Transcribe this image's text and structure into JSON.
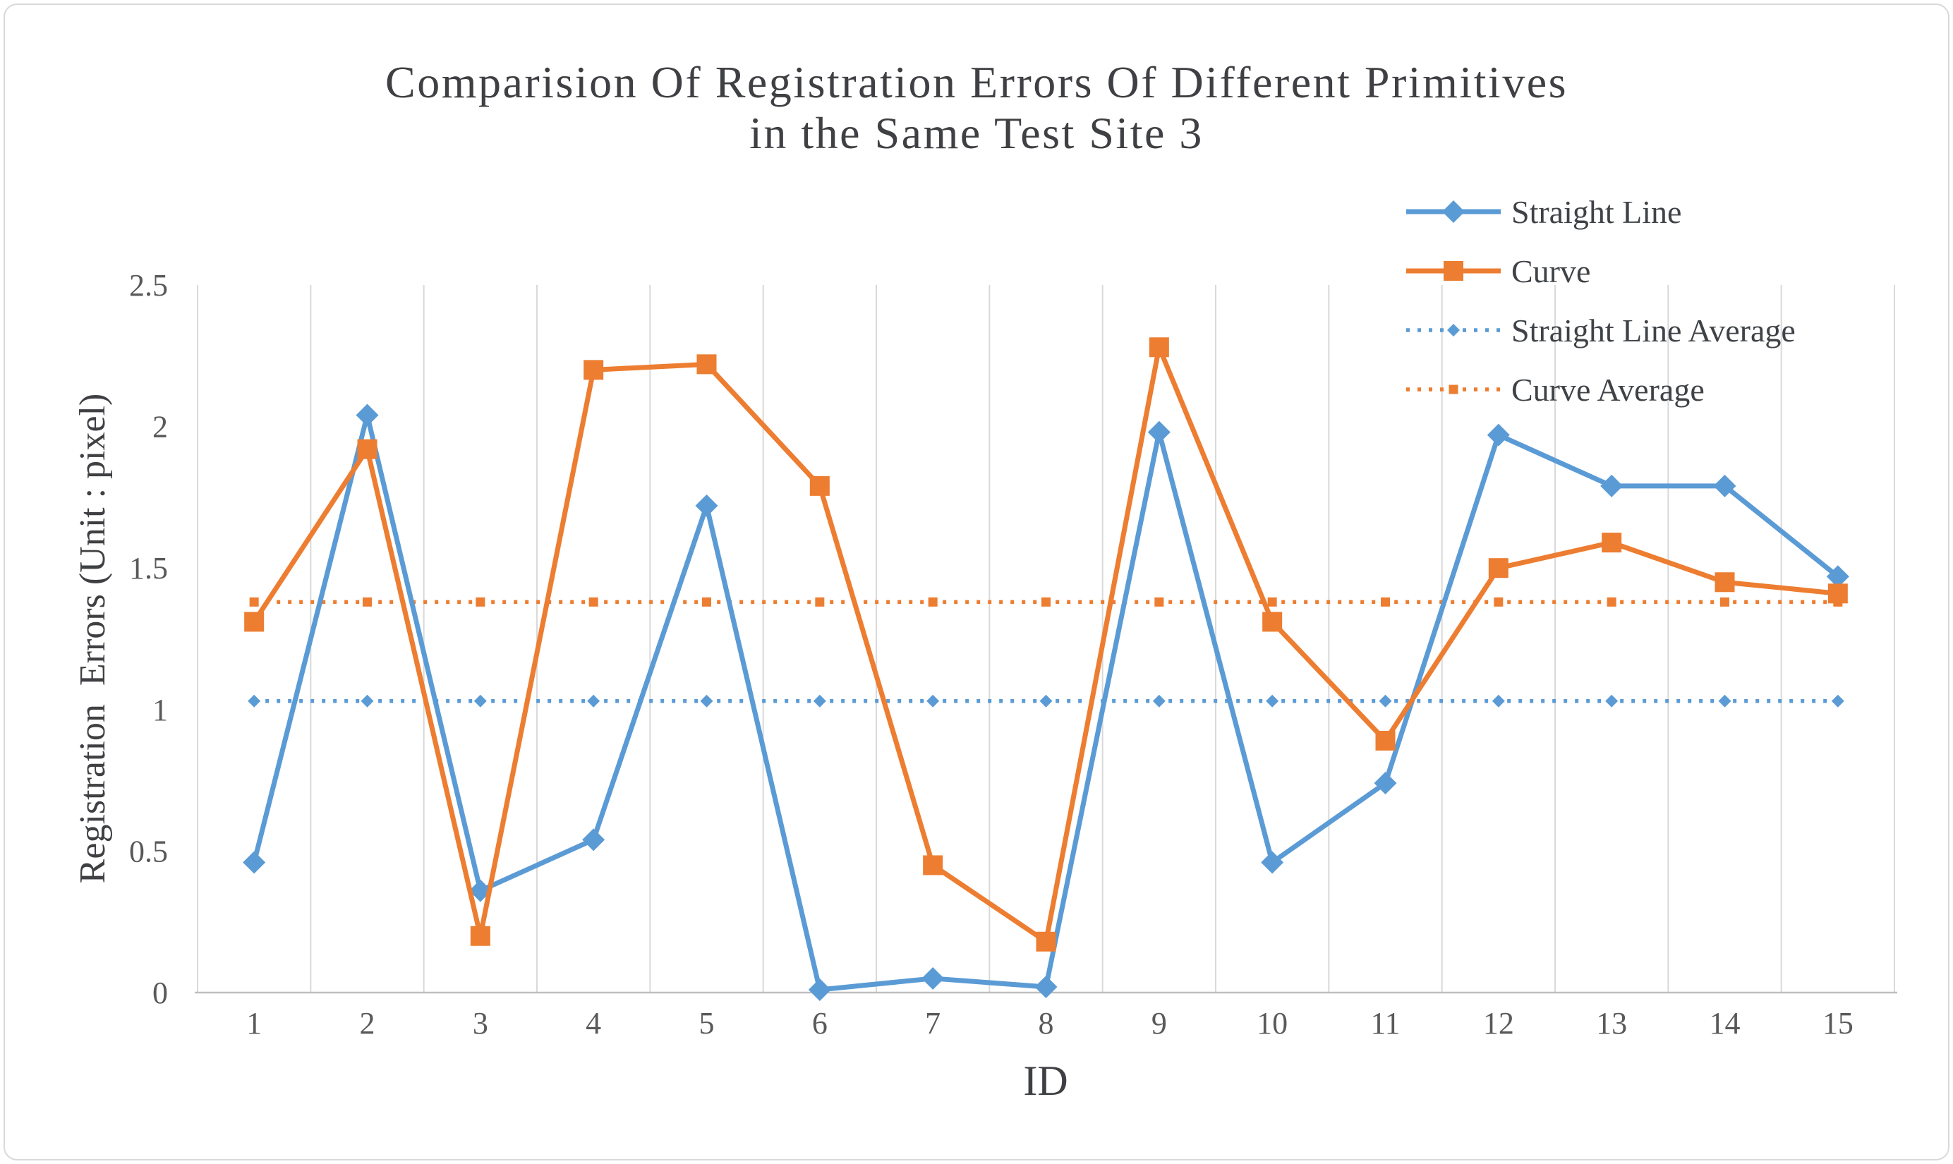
{
  "title": {
    "line1": "Comparision Of Registration Errors Of Different Primitives",
    "line2": "in the Same Test Site 3"
  },
  "axes": {
    "x_title": "ID",
    "y_title": "Registration  Errors (Unit : pixel)",
    "y_tick_labels": [
      "0",
      "0.5",
      "1",
      "1.5",
      "2",
      "2.5"
    ],
    "x_tick_labels": [
      "1",
      "2",
      "3",
      "4",
      "5",
      "6",
      "7",
      "8",
      "9",
      "10",
      "11",
      "12",
      "13",
      "14",
      "15"
    ]
  },
  "legend": {
    "items": [
      {
        "label": "Straight Line"
      },
      {
        "label": "Curve"
      },
      {
        "label": "Straight Line Average"
      },
      {
        "label": "Curve Average"
      }
    ],
    "position": "top-right"
  },
  "colors": {
    "blue_series": "#5B9BD5",
    "orange_series": "#ED7D31",
    "gridline": "#d9d9d9",
    "axis_line": "#bfbfbf",
    "title_text": "#3f4043",
    "tick_text": "#595959"
  },
  "chart_data": {
    "type": "line",
    "title": "Comparision Of Registration Errors Of Different Primitives in the Same Test Site 3",
    "xlabel": "ID",
    "ylabel": "Registration Errors (Unit : pixel)",
    "categories": [
      1,
      2,
      3,
      4,
      5,
      6,
      7,
      8,
      9,
      10,
      11,
      12,
      13,
      14,
      15
    ],
    "ylim": [
      0,
      2.5
    ],
    "yticks": [
      0,
      0.5,
      1,
      1.5,
      2,
      2.5
    ],
    "grid": "vertical-only",
    "legend_position": "top-right",
    "series": [
      {
        "name": "Straight Line",
        "color": "#5B9BD5",
        "style": "solid",
        "marker": "diamond",
        "values": [
          0.46,
          2.04,
          0.36,
          0.54,
          1.72,
          0.01,
          0.05,
          0.02,
          1.98,
          0.46,
          0.74,
          1.97,
          1.79,
          1.79,
          1.47
        ]
      },
      {
        "name": "Curve",
        "color": "#ED7D31",
        "style": "solid",
        "marker": "square",
        "values": [
          1.31,
          1.92,
          0.2,
          2.2,
          2.22,
          1.79,
          0.45,
          0.18,
          2.28,
          1.31,
          0.89,
          1.5,
          1.59,
          1.45,
          1.41
        ]
      },
      {
        "name": "Straight Line Average",
        "color": "#5B9BD5",
        "style": "dotted",
        "marker": "diamond-small",
        "values": [
          1.03,
          1.03,
          1.03,
          1.03,
          1.03,
          1.03,
          1.03,
          1.03,
          1.03,
          1.03,
          1.03,
          1.03,
          1.03,
          1.03,
          1.03
        ]
      },
      {
        "name": "Curve Average",
        "color": "#ED7D31",
        "style": "dotted",
        "marker": "square-small",
        "values": [
          1.38,
          1.38,
          1.38,
          1.38,
          1.38,
          1.38,
          1.38,
          1.38,
          1.38,
          1.38,
          1.38,
          1.38,
          1.38,
          1.38,
          1.38
        ]
      }
    ]
  }
}
